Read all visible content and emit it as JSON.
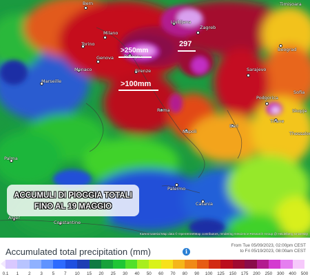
{
  "map": {
    "cities": [
      {
        "name": "Bern"
      },
      {
        "name": "Ljubljana"
      },
      {
        "name": "Zagreb"
      },
      {
        "name": "Milano"
      },
      {
        "name": "Torino"
      },
      {
        "name": "Genova"
      },
      {
        "name": "Bologna"
      },
      {
        "name": "Monaco"
      },
      {
        "name": "Firenze"
      },
      {
        "name": "Marseille"
      },
      {
        "name": "Roma"
      },
      {
        "name": "Sarajevo"
      },
      {
        "name": "Podgorica"
      },
      {
        "name": "Tirane"
      },
      {
        "name": "Napoli"
      },
      {
        "name": "Bari"
      },
      {
        "name": "Palma"
      },
      {
        "name": "Palermo"
      },
      {
        "name": "Catania"
      },
      {
        "name": "Alger"
      },
      {
        "name": "Constantine"
      },
      {
        "name": "Timișoara"
      },
      {
        "name": "Beograd"
      },
      {
        "name": "Sofia"
      },
      {
        "name": "Skopje"
      },
      {
        "name": "Thessaloniki"
      }
    ],
    "annotations": [
      {
        "text": ">250mm"
      },
      {
        "text": "297"
      },
      {
        "text": ">100mm"
      }
    ],
    "headline": [
      "ACCUMULI DI PIOGGIA TOTALI",
      "FINO AL 19 MAGGIO"
    ],
    "attribution": "Kartenmaterial  Map data © OpenStreetMap contributors, rendering GIScience Research Group @ Heidelberg University"
  },
  "legend": {
    "title": "Accumulated total precipitation (mm)",
    "info_icon": "info-icon",
    "period_from": "From Tue 05/09/2023, 02:00pm CEST",
    "period_to": "to Fri 05/19/2023, 08:00am CEST",
    "ticks": [
      "0.1",
      "1",
      "2",
      "3",
      "5",
      "7",
      "10",
      "15",
      "20",
      "25",
      "30",
      "40",
      "50",
      "60",
      "70",
      "80",
      "90",
      "100",
      "125",
      "150",
      "175",
      "200",
      "250",
      "300",
      "400",
      "500"
    ],
    "colors": [
      "#f2e7ff",
      "#d9c8ff",
      "#b8c4ff",
      "#8fb1ff",
      "#5f93ff",
      "#2d6bff",
      "#1f4fe0",
      "#1e3eb4",
      "#0f7a43",
      "#17a13b",
      "#1fc635",
      "#52e02a",
      "#a8ee1f",
      "#d9f21a",
      "#f7e11b",
      "#f5b61a",
      "#f08a18",
      "#e65c15",
      "#d22b12",
      "#bb0d1d",
      "#a00a30",
      "#8a0b4a",
      "#b31a8f",
      "#d43ad0",
      "#e57ff0",
      "#f6c9fb",
      "#ffffff"
    ]
  }
}
